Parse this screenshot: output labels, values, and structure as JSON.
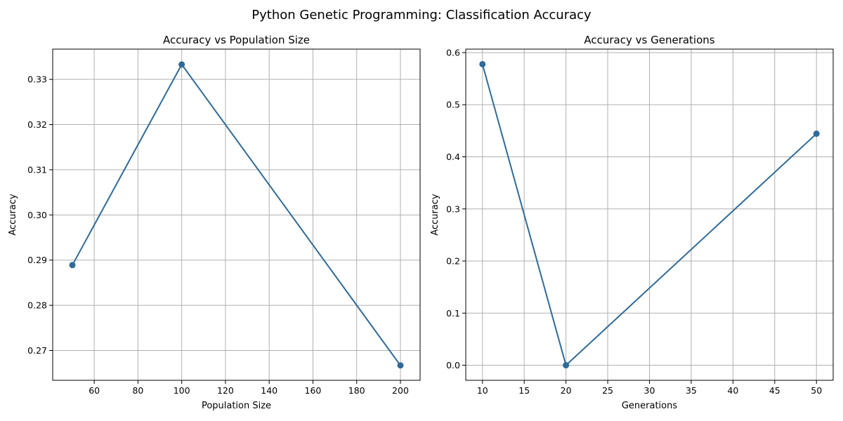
{
  "figure": {
    "suptitle": "Python Genetic Programming: Classification Accuracy"
  },
  "colors": {
    "series": "#2f6a98"
  },
  "chart_data": [
    {
      "type": "line",
      "title": "Accuracy vs Population Size",
      "xlabel": "Population Size",
      "ylabel": "Accuracy",
      "x": [
        50,
        100,
        200
      ],
      "y": [
        0.2889,
        0.3333,
        0.2667
      ],
      "xlim": [
        41,
        209
      ],
      "ylim": [
        0.2634,
        0.3367
      ],
      "xticks": [
        60,
        80,
        100,
        120,
        140,
        160,
        180,
        200
      ],
      "yticks": [
        0.27,
        0.28,
        0.29,
        0.3,
        0.31,
        0.32,
        0.33
      ],
      "ytick_labels": [
        "0.27",
        "0.28",
        "0.29",
        "0.30",
        "0.31",
        "0.32",
        "0.33"
      ],
      "grid": true,
      "marker": "circle"
    },
    {
      "type": "line",
      "title": "Accuracy vs Generations",
      "xlabel": "Generations",
      "ylabel": "Accuracy",
      "x": [
        10,
        20,
        50
      ],
      "y": [
        0.5778,
        0.0,
        0.4444
      ],
      "xlim": [
        8,
        52
      ],
      "ylim": [
        -0.0289,
        0.6067
      ],
      "xticks": [
        10,
        15,
        20,
        25,
        30,
        35,
        40,
        45,
        50
      ],
      "yticks": [
        0.0,
        0.1,
        0.2,
        0.3,
        0.4,
        0.5,
        0.6
      ],
      "ytick_labels": [
        "0.0",
        "0.1",
        "0.2",
        "0.3",
        "0.4",
        "0.5",
        "0.6"
      ],
      "grid": true,
      "marker": "circle"
    }
  ]
}
